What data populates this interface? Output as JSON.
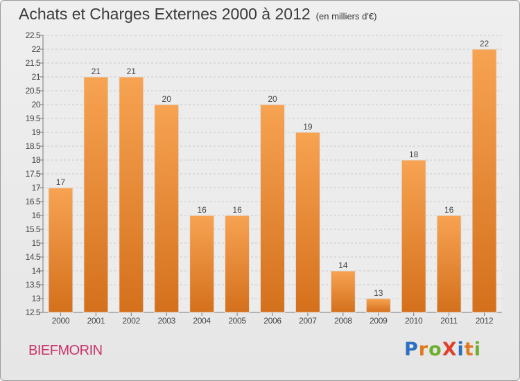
{
  "header": {
    "title": "Achats et Charges Externes 2000 à 2012",
    "subtitle": "(en milliers d'€)"
  },
  "footer": {
    "commune": "BIEFMORIN",
    "logo_letters": [
      {
        "ch": "P",
        "color": "#2a6fc1"
      },
      {
        "ch": "r",
        "color": "#e07a1f"
      },
      {
        "ch": "o",
        "color": "#6dae2c"
      },
      {
        "ch": "X",
        "color": "#e23f2b"
      },
      {
        "ch": "i",
        "color": "#2a6fc1"
      },
      {
        "ch": "t",
        "color": "#e07a1f"
      },
      {
        "ch": "i",
        "color": "#6dae2c"
      }
    ]
  },
  "chart_data": {
    "type": "bar",
    "categories": [
      "2000",
      "2001",
      "2002",
      "2003",
      "2004",
      "2005",
      "2006",
      "2007",
      "2008",
      "2009",
      "2010",
      "2011",
      "2012"
    ],
    "values": [
      17,
      21,
      21,
      20,
      16,
      16,
      20,
      19,
      14,
      13,
      18,
      16,
      22
    ],
    "data_labels": [
      "17",
      "21",
      "21",
      "20",
      "16",
      "16",
      "20",
      "19",
      "14",
      "13",
      "18",
      "16",
      "22"
    ],
    "ylim": [
      12.5,
      22.5
    ],
    "yticks": [
      "12.5",
      "13",
      "13.5",
      "14",
      "14.5",
      "15",
      "15.5",
      "16",
      "16.5",
      "17",
      "17.5",
      "18",
      "18.5",
      "19",
      "19.5",
      "20",
      "20.5",
      "21",
      "21.5",
      "22",
      "22.5"
    ],
    "grid": true,
    "bar_color": "#f0913a"
  }
}
